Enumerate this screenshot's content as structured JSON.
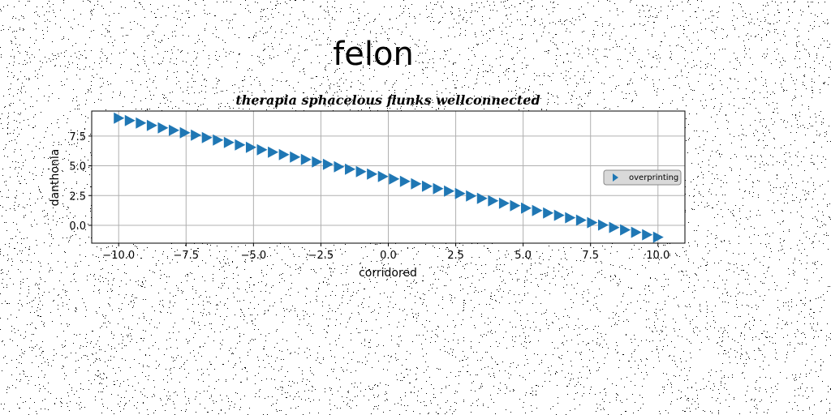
{
  "figure": {
    "suptitle": "felon",
    "background": "#ffffff",
    "noise_color": "#000000"
  },
  "chart_data": {
    "type": "scatter",
    "title": "therapia sphacelous flunks wellconnected",
    "xlabel": "corridored",
    "ylabel": "danthonia",
    "xlim": [
      -11,
      11
    ],
    "ylim": [
      -1.5,
      9.6
    ],
    "xticks": [
      -10.0,
      -7.5,
      -5.0,
      -2.5,
      0.0,
      2.5,
      5.0,
      7.5,
      10.0
    ],
    "xtick_labels": [
      "−10.0",
      "−7.5",
      "−5.0",
      "−2.5",
      "0.0",
      "2.5",
      "5.0",
      "7.5",
      "10.0"
    ],
    "yticks": [
      0.0,
      2.5,
      5.0,
      7.5
    ],
    "ytick_labels": [
      "0.0",
      "2.5",
      "5.0",
      "7.5"
    ],
    "grid": true,
    "legend_position": "center-right",
    "marker": "triangle-right",
    "color": "#1f77b4",
    "series": [
      {
        "name": "overprinting",
        "x_start": -10.0,
        "x_end": 10.0,
        "count": 50,
        "y_start": 9.0,
        "y_end": -1.0
      }
    ]
  }
}
